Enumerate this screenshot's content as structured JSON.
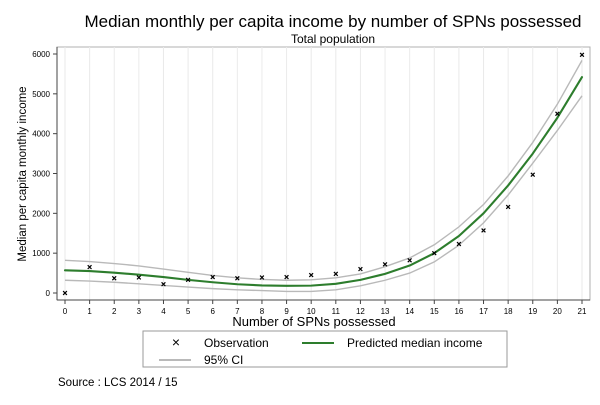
{
  "chart_data": {
    "type": "scatter",
    "title": "Median monthly per capita income by number of SPNs possessed",
    "subtitle": "Total population",
    "xlabel": "Number of SPNs possessed",
    "ylabel": "Median per capita monthly income",
    "xlim": [
      0,
      21
    ],
    "ylim": [
      0,
      6000
    ],
    "x_ticks": [
      "0",
      "1",
      "2",
      "3",
      "4",
      "5",
      "6",
      "7",
      "8",
      "9",
      "10",
      "11",
      "12",
      "13",
      "14",
      "15",
      "16",
      "17",
      "18",
      "19",
      "20",
      "21"
    ],
    "y_ticks": [
      "0",
      "1000",
      "2000",
      "3000",
      "4000",
      "5000",
      "6000"
    ],
    "grid": "vertical",
    "legend_position": "bottom",
    "series": [
      {
        "name": "Observation",
        "kind": "markers",
        "color": "#000000",
        "x": [
          0,
          1,
          2,
          3,
          4,
          5,
          6,
          7,
          8,
          9,
          10,
          11,
          12,
          13,
          14,
          15,
          16,
          17,
          18,
          19,
          20,
          21
        ],
        "y": [
          0,
          650,
          370,
          390,
          220,
          330,
          400,
          370,
          390,
          400,
          450,
          480,
          600,
          720,
          820,
          1000,
          1230,
          1570,
          2160,
          2970,
          4500,
          5980
        ]
      },
      {
        "name": "Predicted median income",
        "kind": "line",
        "color": "#2d7d2d",
        "x": [
          0,
          1,
          2,
          3,
          4,
          5,
          6,
          7,
          8,
          9,
          10,
          11,
          12,
          13,
          14,
          15,
          16,
          17,
          18,
          19,
          20,
          21
        ],
        "y": [
          570,
          550,
          510,
          460,
          400,
          330,
          270,
          220,
          190,
          180,
          185,
          230,
          330,
          480,
          690,
          1000,
          1430,
          2000,
          2700,
          3500,
          4400,
          5420
        ]
      },
      {
        "name": "95% CI",
        "kind": "band",
        "color": "#b9b9b9",
        "x": [
          0,
          1,
          2,
          3,
          4,
          5,
          6,
          7,
          8,
          9,
          10,
          11,
          12,
          13,
          14,
          15,
          16,
          17,
          18,
          19,
          20,
          21
        ],
        "upper": [
          820,
          790,
          740,
          680,
          600,
          520,
          440,
          380,
          340,
          320,
          330,
          380,
          480,
          660,
          880,
          1210,
          1660,
          2220,
          2940,
          3780,
          4740,
          5840
        ],
        "lower": [
          320,
          300,
          270,
          230,
          190,
          150,
          110,
          80,
          60,
          40,
          40,
          80,
          180,
          320,
          500,
          780,
          1200,
          1760,
          2460,
          3260,
          4080,
          4950
        ]
      }
    ]
  },
  "source_note": "Source : LCS 2014 / 15"
}
